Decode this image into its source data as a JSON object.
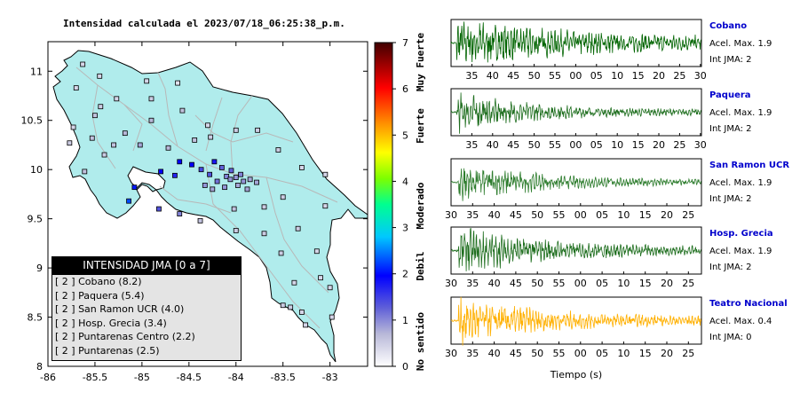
{
  "map": {
    "title": "Intensidad calculada el 2023/07/18_06:25:38_p.m.",
    "x_ticks": [
      "-86",
      "-85.5",
      "-85",
      "-84.5",
      "-84",
      "-83.5",
      "-83"
    ],
    "y_ticks": [
      "11",
      "10.5",
      "10",
      "9.5",
      "9",
      "8.5",
      "8"
    ],
    "colors": {
      "sea": "#ffffff",
      "land": "#b0ecec",
      "border": "#000000",
      "roads": "#b8b8b8"
    }
  },
  "colorbar": {
    "ticks": [
      "0",
      "1",
      "2",
      "3",
      "4",
      "5",
      "6",
      "7"
    ],
    "categories": [
      "No sentido",
      "Debil",
      "Moderado",
      "Fuerte",
      "Muy Fuerte"
    ]
  },
  "legend": {
    "title": "INTENSIDAD JMA [0 a 7]",
    "items": [
      "[ 2 ] Cobano (8.2)",
      "[ 2 ] Paquera (5.4)",
      "[ 2 ] San Ramon UCR (4.0)",
      "[ 2 ] Hosp. Grecia (3.4)",
      "[ 2 ] Puntarenas Centro (2.2)",
      "[ 2 ] Puntarenas (2.5)"
    ]
  },
  "waveforms": {
    "xlabel": "Tiempo (s)",
    "stations": [
      {
        "name": "Cobano",
        "accel": "Acel. Max. 1.9",
        "jma": "Int JMA: 2",
        "color": "#006400",
        "ticks": [
          "35",
          "40",
          "45",
          "50",
          "55",
          "00",
          "05",
          "10",
          "15",
          "20",
          "25",
          "30"
        ],
        "first_tick": "30"
      },
      {
        "name": "Paquera",
        "accel": "Acel. Max. 1.9",
        "jma": "Int JMA: 2",
        "color": "#1e6e1e",
        "ticks": [
          "35",
          "40",
          "45",
          "50",
          "55",
          "00",
          "05",
          "10",
          "15",
          "20",
          "25",
          "30"
        ],
        "first_tick": "30"
      },
      {
        "name": "San Ramon UCR",
        "accel": "Acel. Max. 1.9",
        "jma": "Int JMA: 2",
        "color": "#2e7d2e",
        "ticks": [
          "30",
          "35",
          "40",
          "45",
          "50",
          "55",
          "00",
          "05",
          "10",
          "15",
          "20",
          "25"
        ],
        "first_tick": "30"
      },
      {
        "name": "Hosp. Grecia",
        "accel": "Acel. Max. 1.9",
        "jma": "Int JMA: 2",
        "color": "#1e6e1e",
        "ticks": [
          "30",
          "35",
          "40",
          "45",
          "50",
          "55",
          "00",
          "05",
          "10",
          "15",
          "20",
          "25"
        ],
        "first_tick": "30"
      },
      {
        "name": "Teatro Nacional",
        "accel": "Acel. Max. 0.4",
        "jma": "Int JMA: 0",
        "color": "#ffb000",
        "ticks": [
          "30",
          "35",
          "40",
          "45",
          "50",
          "55",
          "00",
          "05",
          "10",
          "15",
          "20",
          "25"
        ],
        "first_tick": "30"
      }
    ]
  },
  "chart_data": [
    {
      "type": "scatter",
      "title": "Intensidad calculada el 2023/07/18_06:25:38_p.m.",
      "xlim": [
        -86,
        -82.6
      ],
      "ylim": [
        8,
        11.3
      ],
      "x_ticks": [
        -86,
        -85.5,
        -85,
        -84.5,
        -84,
        -83.5,
        -83
      ],
      "y_ticks": [
        8,
        8.5,
        9,
        9.5,
        10,
        10.5,
        11
      ],
      "colorbar": {
        "min": 0,
        "max": 7
      },
      "legend_title": "INTENSIDAD JMA [0 a 7]",
      "legend_placement": "bottom-left",
      "stations": [
        {
          "name": "Cobano",
          "intensity": 2,
          "pga": 8.2
        },
        {
          "name": "Paquera",
          "intensity": 2,
          "pga": 5.4
        },
        {
          "name": "San Ramon UCR",
          "intensity": 2,
          "pga": 4.0
        },
        {
          "name": "Hosp. Grecia",
          "intensity": 2,
          "pga": 3.4
        },
        {
          "name": "Puntarenas Centro",
          "intensity": 2,
          "pga": 2.2
        },
        {
          "name": "Puntarenas",
          "intensity": 2,
          "pga": 2.5
        }
      ],
      "points": [
        {
          "x": -85.63,
          "y": 11.07,
          "i": 0.4
        },
        {
          "x": -85.45,
          "y": 10.95,
          "i": 0.4
        },
        {
          "x": -85.7,
          "y": 10.83,
          "i": 0.4
        },
        {
          "x": -85.5,
          "y": 10.55,
          "i": 0.6
        },
        {
          "x": -85.27,
          "y": 10.72,
          "i": 0.4
        },
        {
          "x": -84.95,
          "y": 10.9,
          "i": 0.4
        },
        {
          "x": -84.62,
          "y": 10.88,
          "i": 0.3
        },
        {
          "x": -85.44,
          "y": 10.64,
          "i": 0.5
        },
        {
          "x": -84.9,
          "y": 10.72,
          "i": 0.5
        },
        {
          "x": -84.57,
          "y": 10.6,
          "i": 0.6
        },
        {
          "x": -84.3,
          "y": 10.45,
          "i": 0.4
        },
        {
          "x": -84.9,
          "y": 10.5,
          "i": 0.7
        },
        {
          "x": -85.73,
          "y": 10.43,
          "i": 0.4
        },
        {
          "x": -85.53,
          "y": 10.32,
          "i": 0.6
        },
        {
          "x": -85.77,
          "y": 10.27,
          "i": 0.5
        },
        {
          "x": -85.18,
          "y": 10.37,
          "i": 0.7
        },
        {
          "x": -85.02,
          "y": 10.25,
          "i": 0.8
        },
        {
          "x": -84.72,
          "y": 10.22,
          "i": 0.7
        },
        {
          "x": -84.44,
          "y": 10.3,
          "i": 0.6
        },
        {
          "x": -84.27,
          "y": 10.33,
          "i": 0.5
        },
        {
          "x": -85.4,
          "y": 10.15,
          "i": 0.5
        },
        {
          "x": -85.3,
          "y": 10.25,
          "i": 0.6
        },
        {
          "x": -85.61,
          "y": 9.98,
          "i": 0.6
        },
        {
          "x": -84.0,
          "y": 10.4,
          "i": 0.5
        },
        {
          "x": -83.77,
          "y": 10.4,
          "i": 0.5
        },
        {
          "x": -83.55,
          "y": 10.2,
          "i": 0.5
        },
        {
          "x": -83.3,
          "y": 10.02,
          "i": 0.4
        },
        {
          "x": -83.05,
          "y": 9.95,
          "i": 0.4
        },
        {
          "x": -84.6,
          "y": 10.08,
          "i": 2.0
        },
        {
          "x": -84.47,
          "y": 10.05,
          "i": 2.0
        },
        {
          "x": -84.23,
          "y": 10.08,
          "i": 1.8
        },
        {
          "x": -84.37,
          "y": 10.0,
          "i": 1.4
        },
        {
          "x": -84.15,
          "y": 10.02,
          "i": 1.2
        },
        {
          "x": -84.05,
          "y": 9.99,
          "i": 1.2
        },
        {
          "x": -83.95,
          "y": 9.95,
          "i": 1.0
        },
        {
          "x": -84.0,
          "y": 9.92,
          "i": 0.9
        },
        {
          "x": -84.1,
          "y": 9.93,
          "i": 1.0
        },
        {
          "x": -84.06,
          "y": 9.9,
          "i": 0.9
        },
        {
          "x": -83.92,
          "y": 9.88,
          "i": 0.9
        },
        {
          "x": -83.85,
          "y": 9.9,
          "i": 0.8
        },
        {
          "x": -83.78,
          "y": 9.87,
          "i": 0.8
        },
        {
          "x": -84.2,
          "y": 9.88,
          "i": 1.1
        },
        {
          "x": -84.28,
          "y": 9.95,
          "i": 1.3
        },
        {
          "x": -84.33,
          "y": 9.84,
          "i": 0.9
        },
        {
          "x": -84.25,
          "y": 9.8,
          "i": 0.8
        },
        {
          "x": -84.12,
          "y": 9.82,
          "i": 0.9
        },
        {
          "x": -83.98,
          "y": 9.84,
          "i": 0.8
        },
        {
          "x": -83.88,
          "y": 9.8,
          "i": 0.8
        },
        {
          "x": -84.65,
          "y": 9.94,
          "i": 1.7
        },
        {
          "x": -84.8,
          "y": 9.98,
          "i": 2.0
        },
        {
          "x": -84.82,
          "y": 9.6,
          "i": 1.3
        },
        {
          "x": -84.6,
          "y": 9.55,
          "i": 1.0
        },
        {
          "x": -85.08,
          "y": 9.82,
          "i": 2.1
        },
        {
          "x": -85.14,
          "y": 9.68,
          "i": 2.3
        },
        {
          "x": -84.38,
          "y": 9.48,
          "i": 0.6
        },
        {
          "x": -84.02,
          "y": 9.6,
          "i": 0.6
        },
        {
          "x": -83.7,
          "y": 9.62,
          "i": 0.5
        },
        {
          "x": -83.5,
          "y": 9.72,
          "i": 0.5
        },
        {
          "x": -83.05,
          "y": 9.63,
          "i": 0.4
        },
        {
          "x": -84.0,
          "y": 9.38,
          "i": 0.5
        },
        {
          "x": -83.7,
          "y": 9.35,
          "i": 0.5
        },
        {
          "x": -83.34,
          "y": 9.4,
          "i": 0.5
        },
        {
          "x": -83.52,
          "y": 9.15,
          "i": 0.5
        },
        {
          "x": -83.14,
          "y": 9.17,
          "i": 0.4
        },
        {
          "x": -83.38,
          "y": 8.85,
          "i": 0.4
        },
        {
          "x": -83.5,
          "y": 8.62,
          "i": 0.5
        },
        {
          "x": -83.42,
          "y": 8.6,
          "i": 0.5
        },
        {
          "x": -83.3,
          "y": 8.55,
          "i": 0.4
        },
        {
          "x": -83.1,
          "y": 8.9,
          "i": 0.4
        },
        {
          "x": -82.98,
          "y": 8.5,
          "i": 0.4
        },
        {
          "x": -83.0,
          "y": 8.8,
          "i": 0.4
        },
        {
          "x": -83.26,
          "y": 8.42,
          "i": 0.4
        }
      ]
    },
    {
      "type": "line",
      "title": "Cobano",
      "xlabel": "Tiempo (s)",
      "x_ticks": [
        "30",
        "35",
        "40",
        "45",
        "50",
        "55",
        "00",
        "05",
        "10",
        "15",
        "20",
        "25",
        "30"
      ],
      "annotations": [
        "Acel. Max. 1.9",
        "Int JMA: 2"
      ]
    },
    {
      "type": "line",
      "title": "Paquera",
      "xlabel": "Tiempo (s)",
      "x_ticks": [
        "35",
        "40",
        "45",
        "50",
        "55",
        "00",
        "05",
        "10",
        "15",
        "20",
        "25",
        "30"
      ],
      "annotations": [
        "Acel. Max. 1.9",
        "Int JMA: 2"
      ]
    },
    {
      "type": "line",
      "title": "San Ramon UCR",
      "xlabel": "Tiempo (s)",
      "x_ticks": [
        "30",
        "35",
        "40",
        "45",
        "50",
        "55",
        "00",
        "05",
        "10",
        "15",
        "20",
        "25"
      ],
      "annotations": [
        "Acel. Max. 1.9",
        "Int JMA: 2"
      ]
    },
    {
      "type": "line",
      "title": "Hosp. Grecia",
      "xlabel": "Tiempo (s)",
      "x_ticks": [
        "30",
        "35",
        "40",
        "45",
        "50",
        "55",
        "00",
        "05",
        "10",
        "15",
        "20",
        "25"
      ],
      "annotations": [
        "Acel. Max. 1.9",
        "Int JMA: 2"
      ]
    },
    {
      "type": "line",
      "title": "Teatro Nacional",
      "xlabel": "Tiempo (s)",
      "x_ticks": [
        "30",
        "35",
        "40",
        "45",
        "50",
        "55",
        "00",
        "05",
        "10",
        "15",
        "20",
        "25"
      ],
      "annotations": [
        "Acel. Max. 0.4",
        "Int JMA: 0"
      ]
    }
  ]
}
